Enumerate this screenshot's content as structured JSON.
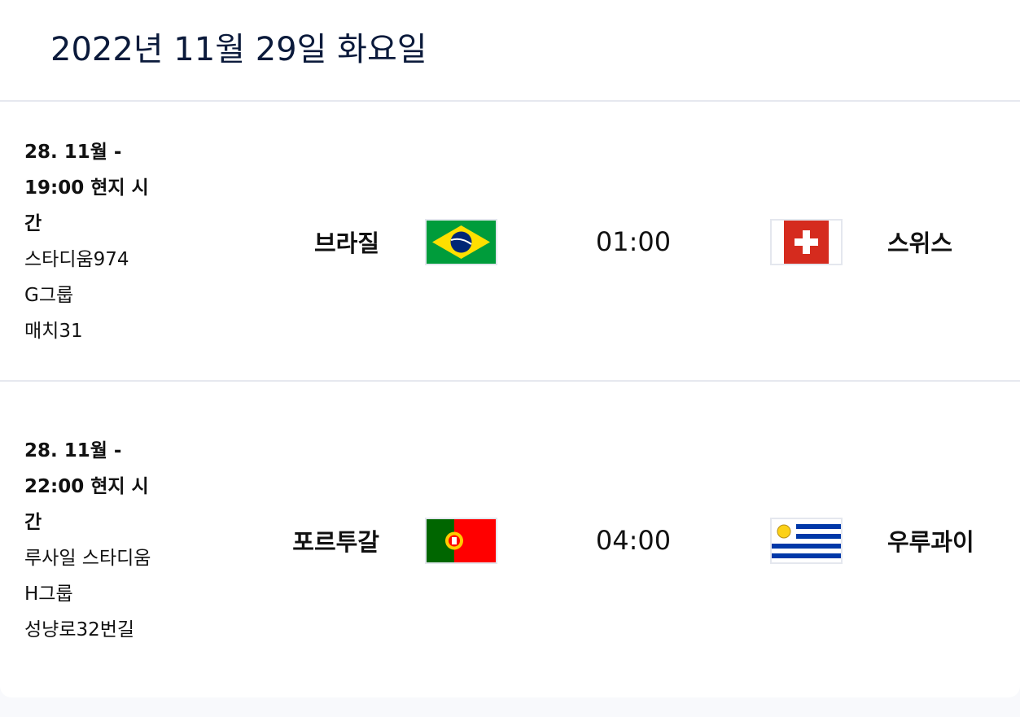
{
  "header": {
    "title": "2022년 11월 29일 화요일"
  },
  "matches": [
    {
      "datetime": "28. 11월 - 19:00 현지 시간",
      "stadium": "스타디움974",
      "group": "G그룹",
      "match": "매치31",
      "home": "브라질",
      "home_flag": "brazil-flag",
      "time": "01:00",
      "away": "스위스",
      "away_flag": "switzerland-flag"
    },
    {
      "datetime": "28. 11월 - 22:00 현지 시간",
      "stadium": "루사일 스타디움",
      "group": "H그룹",
      "match": "성냥로32번길",
      "home": "포르투갈",
      "home_flag": "portugal-flag",
      "time": "04:00",
      "away": "우루과이",
      "away_flag": "uruguay-flag"
    }
  ],
  "colors": {
    "background": "#f8f9fc",
    "divider": "#e6e8ef",
    "title": "#0b1a3b"
  }
}
